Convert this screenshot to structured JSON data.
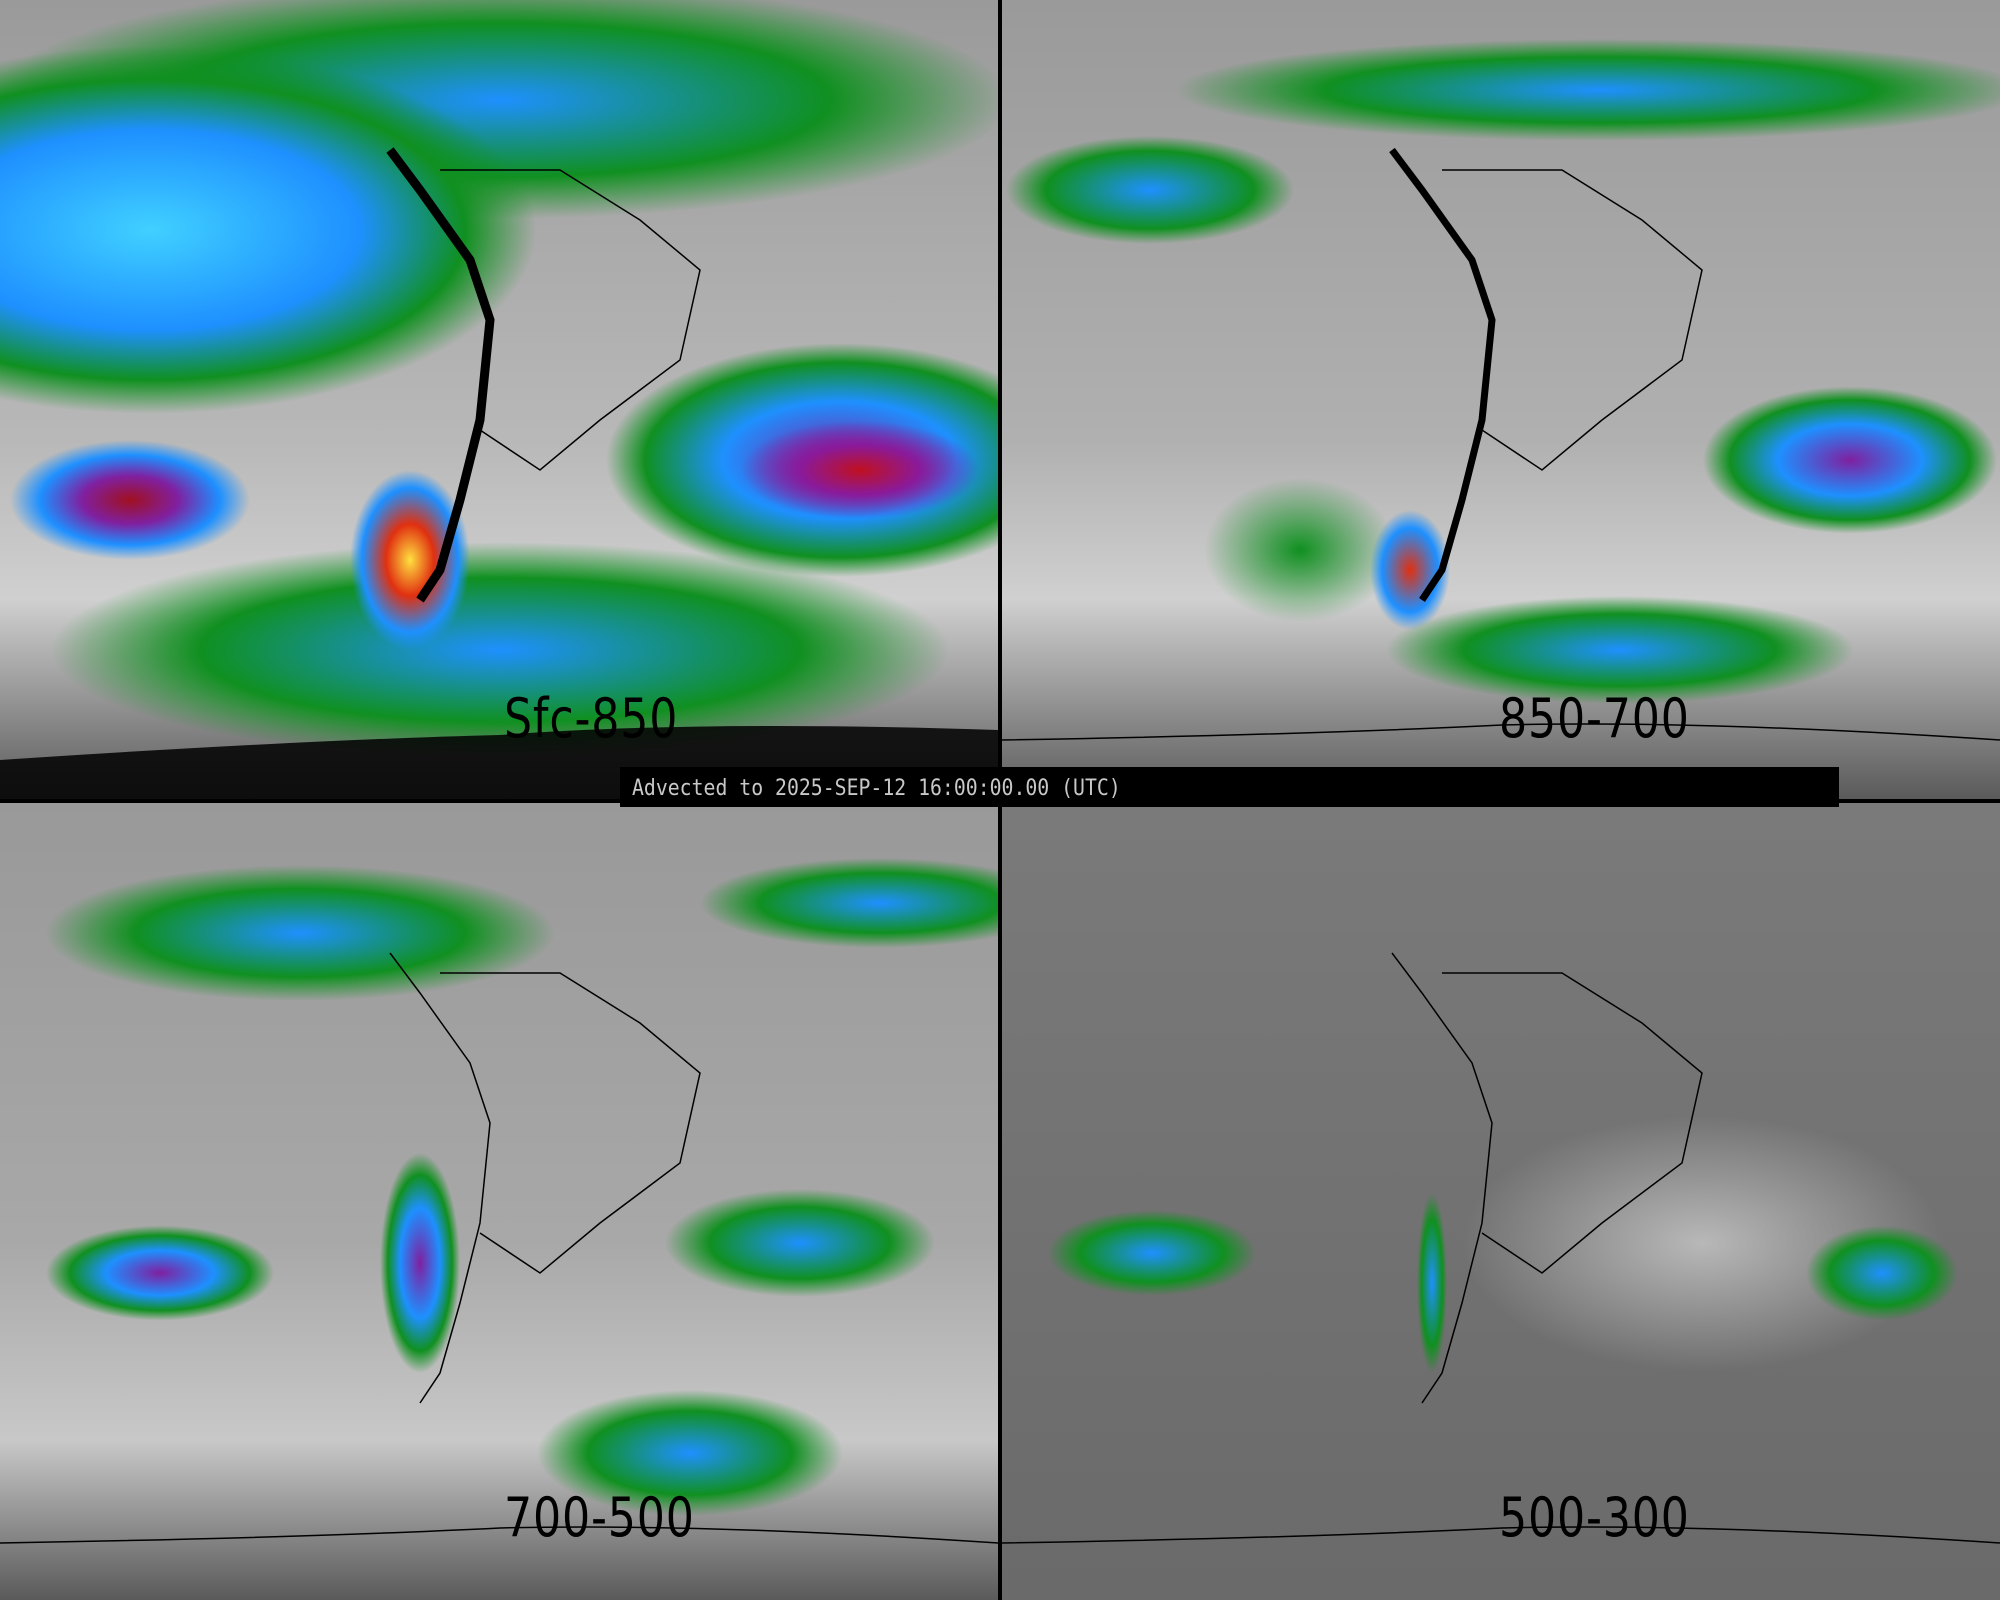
{
  "panels": [
    {
      "label": "Sfc-850"
    },
    {
      "label": "850-700"
    },
    {
      "label": "700-500"
    },
    {
      "label": "500-300"
    }
  ],
  "timestamp": "Advected to 2025-SEP-12 16:00:00.00 (UTC)",
  "colors": {
    "low": "#808080",
    "green": "#109020",
    "blue": "#1e90ff",
    "cyan": "#40d0ff",
    "purple": "#8020a0",
    "red": "#c01020",
    "yellow": "#ffe040",
    "background": "#000000"
  }
}
